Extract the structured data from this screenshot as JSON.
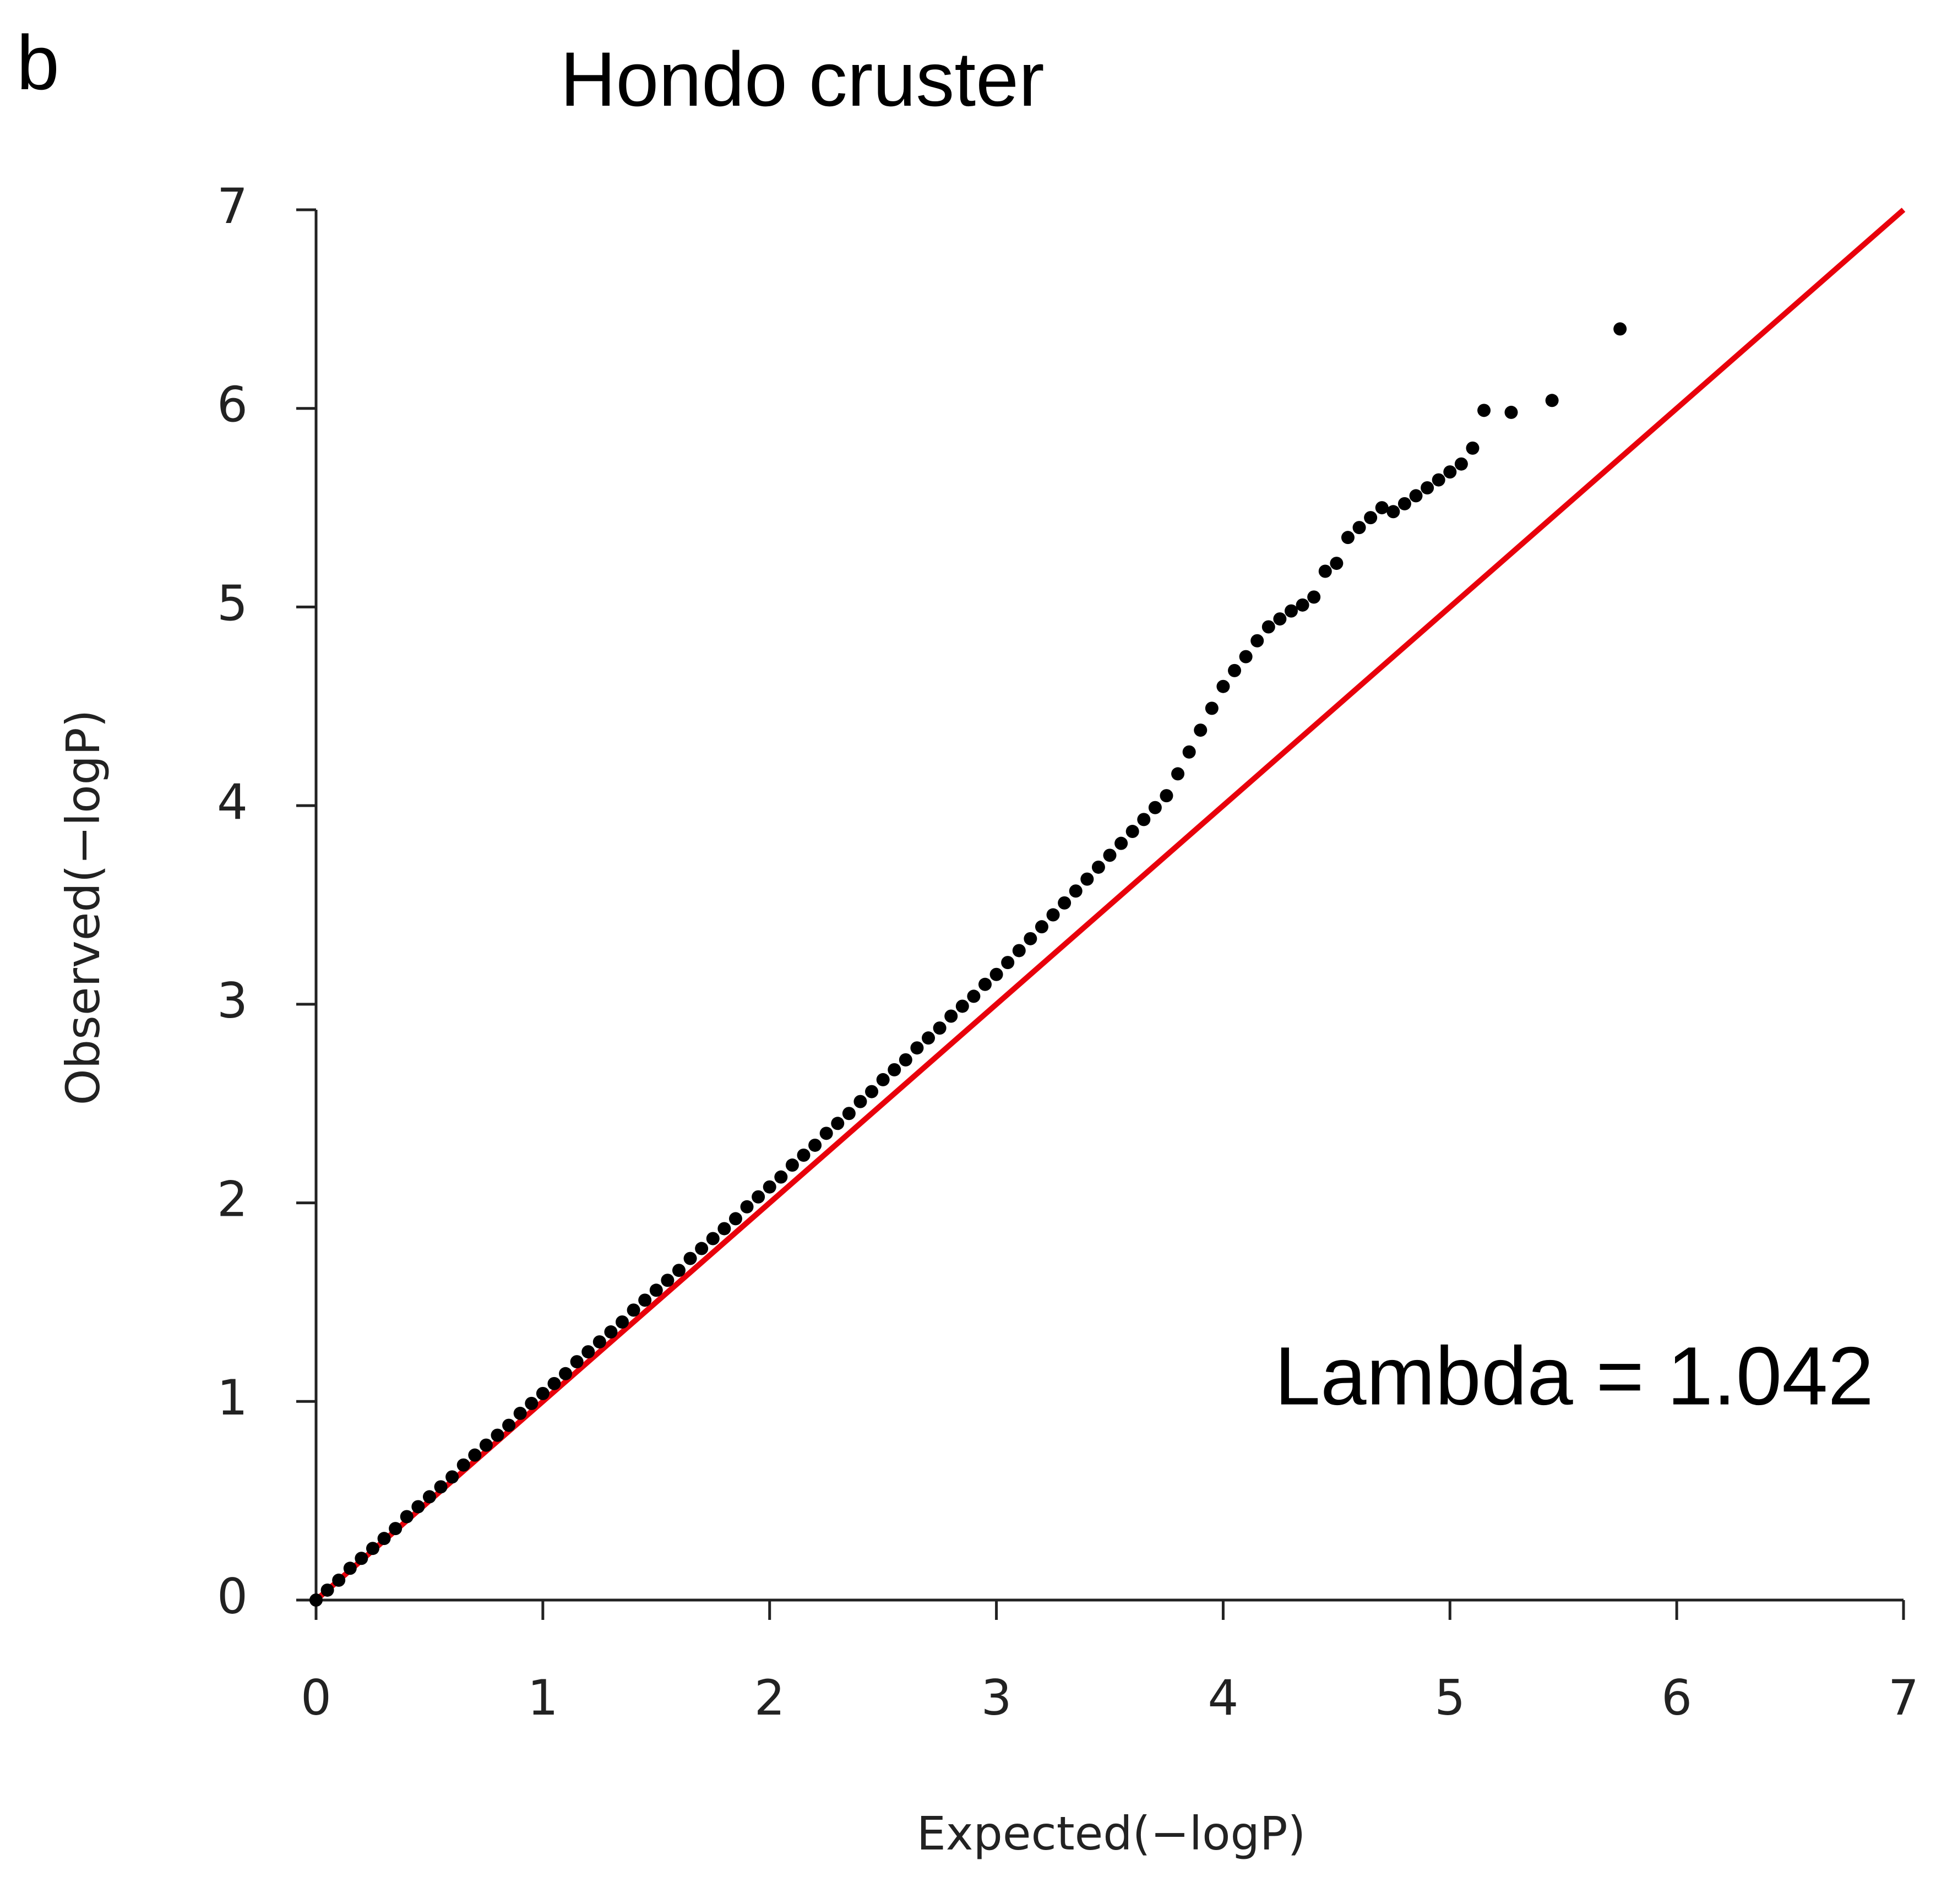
{
  "chart_data": {
    "type": "scatter",
    "panel_label": "b",
    "title": "Hondo cruster",
    "x_label": "Expected(−logP)",
    "y_label": "Observed(−logP)",
    "annotation": "Lambda = 1.042",
    "xlim": [
      0,
      7
    ],
    "ylim": [
      0,
      7
    ],
    "xticks": [
      0,
      1,
      2,
      3,
      4,
      5,
      6,
      7
    ],
    "yticks": [
      0,
      1,
      2,
      3,
      4,
      5,
      6,
      7
    ],
    "color": "#000000",
    "reference_color": "#e8000b",
    "x": [
      0,
      0.05,
      0.1,
      0.15,
      0.2,
      0.25,
      0.3,
      0.35,
      0.4,
      0.45,
      0.5,
      0.55,
      0.6,
      0.65,
      0.7,
      0.75,
      0.8,
      0.85,
      0.9,
      0.95,
      1,
      1.05,
      1.1,
      1.15,
      1.2,
      1.25,
      1.3,
      1.35,
      1.4,
      1.45,
      1.5,
      1.55,
      1.6,
      1.65,
      1.7,
      1.75,
      1.8,
      1.85,
      1.9,
      1.95,
      2,
      2.05,
      2.1,
      2.15,
      2.2,
      2.25,
      2.3,
      2.35,
      2.4,
      2.45,
      2.5,
      2.55,
      2.6,
      2.65,
      2.7,
      2.75,
      2.8,
      2.85,
      2.9,
      2.95,
      3,
      3.05,
      3.1,
      3.15,
      3.2,
      3.25,
      3.3,
      3.35,
      3.4,
      3.45,
      3.5,
      3.55,
      3.6,
      3.65,
      3.7,
      3.75,
      3.8,
      3.85,
      3.9,
      3.95,
      4,
      4.05,
      4.1,
      4.15,
      4.2,
      4.25,
      4.3,
      4.35,
      4.4,
      4.45,
      4.5,
      4.55,
      4.6,
      4.65,
      4.7,
      4.75,
      4.8,
      4.85,
      4.9,
      4.95,
      5,
      5.05,
      5.1,
      5.15,
      5.27,
      5.45,
      5.75
    ],
    "values": [
      0,
      0.05,
      0.1,
      0.16,
      0.21,
      0.26,
      0.31,
      0.36,
      0.42,
      0.47,
      0.52,
      0.57,
      0.62,
      0.68,
      0.73,
      0.78,
      0.83,
      0.88,
      0.94,
      0.99,
      1.04,
      1.09,
      1.14,
      1.2,
      1.25,
      1.3,
      1.35,
      1.4,
      1.46,
      1.51,
      1.56,
      1.61,
      1.66,
      1.72,
      1.77,
      1.82,
      1.87,
      1.92,
      1.98,
      2.03,
      2.08,
      2.13,
      2.19,
      2.24,
      2.29,
      2.35,
      2.4,
      2.45,
      2.51,
      2.56,
      2.62,
      2.67,
      2.72,
      2.78,
      2.83,
      2.88,
      2.94,
      2.99,
      3.04,
      3.1,
      3.15,
      3.21,
      3.27,
      3.33,
      3.39,
      3.45,
      3.51,
      3.57,
      3.63,
      3.69,
      3.75,
      3.81,
      3.87,
      3.93,
      3.99,
      4.05,
      4.16,
      4.27,
      4.38,
      4.49,
      4.6,
      4.68,
      4.75,
      4.83,
      4.9,
      4.94,
      4.98,
      5.01,
      5.05,
      5.18,
      5.22,
      5.35,
      5.4,
      5.45,
      5.5,
      5.48,
      5.52,
      5.56,
      5.6,
      5.64,
      5.68,
      5.72,
      5.8,
      5.99,
      5.98,
      6.04,
      6.4
    ]
  }
}
